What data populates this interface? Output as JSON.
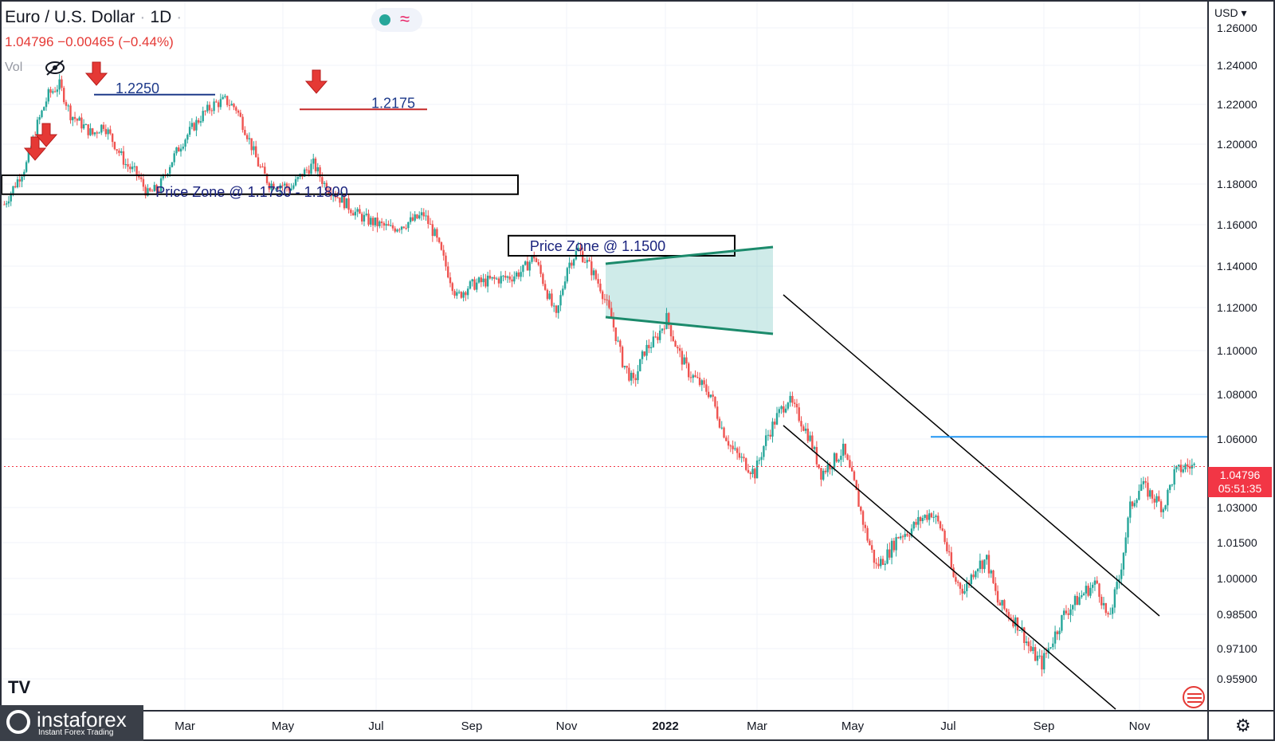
{
  "header": {
    "symbol": "Euro / U.S. Dollar",
    "interval": "1D",
    "last_price": "1.04796",
    "change": "−0.00465 (−0.44%)",
    "vol_label": "Vol",
    "currency": "USD"
  },
  "price_tag": {
    "price": "1.04796",
    "countdown": "05:51:35"
  },
  "branding": {
    "logo": "instaforex",
    "tagline": "Instant Forex Trading"
  },
  "colors": {
    "up": "#26a69a",
    "down": "#ef5350",
    "zone_fill": "rgba(38,166,154,0.22)",
    "h_line": "#2196f3"
  },
  "chart_data": {
    "type": "candlestick",
    "y_ticks": [
      "1.26000",
      "1.24000",
      "1.22000",
      "1.20000",
      "1.18000",
      "1.16000",
      "1.14000",
      "1.12000",
      "1.10000",
      "1.08000",
      "1.06000",
      "1.03000",
      "1.01500",
      "1.00000",
      "0.98500",
      "0.97100",
      "0.95900"
    ],
    "x_ticks": [
      "Mar",
      "May",
      "Jul",
      "Sep",
      "Nov",
      "2022",
      "Mar",
      "May",
      "Jul",
      "Sep",
      "Nov"
    ],
    "series": [
      {
        "values": [
          1.17,
          1.18,
          1.19,
          1.21,
          1.225,
          1.23,
          1.215,
          1.21,
          1.205,
          1.21,
          1.2,
          1.19,
          1.185,
          1.175,
          1.178,
          1.19,
          1.2,
          1.208,
          1.215,
          1.22,
          1.222,
          1.218,
          1.205,
          1.19,
          1.18,
          1.18,
          1.178,
          1.185,
          1.19,
          1.18,
          1.175,
          1.17,
          1.165,
          1.162,
          1.16,
          1.158,
          1.16,
          1.162,
          1.165,
          1.155,
          1.14,
          1.125,
          1.13,
          1.132,
          1.133,
          1.134,
          1.135,
          1.138,
          1.145,
          1.13,
          1.115,
          1.14,
          1.148,
          1.14,
          1.13,
          1.115,
          1.095,
          1.085,
          1.1,
          1.105,
          1.115,
          1.1,
          1.09,
          1.085,
          1.08,
          1.065,
          1.055,
          1.05,
          1.045,
          1.06,
          1.07,
          1.078,
          1.07,
          1.06,
          1.045,
          1.05,
          1.055,
          1.04,
          1.02,
          1.005,
          1.01,
          1.018,
          1.02,
          1.025,
          1.028,
          1.02,
          1.0,
          0.995,
          1.005,
          1.008,
          0.99,
          0.985,
          0.98,
          0.97,
          0.965,
          0.975,
          0.985,
          0.99,
          0.995,
          0.998,
          0.982,
          1.0,
          1.03,
          1.04,
          1.035,
          1.03,
          1.045,
          1.048
        ]
      }
    ],
    "annotations": [
      {
        "text": "1.2250",
        "value": 1.225
      },
      {
        "text": "1.2175",
        "value": 1.2175
      },
      {
        "text": "Price Zone @ 1.1750 - 1.1800",
        "from": 1.175,
        "to": 1.18
      },
      {
        "text": "Price Zone @ 1.1500",
        "from": 1.145,
        "to": 1.152
      },
      {
        "text": "",
        "value": 1.061
      }
    ],
    "last_value": 1.04796,
    "grid": true
  }
}
